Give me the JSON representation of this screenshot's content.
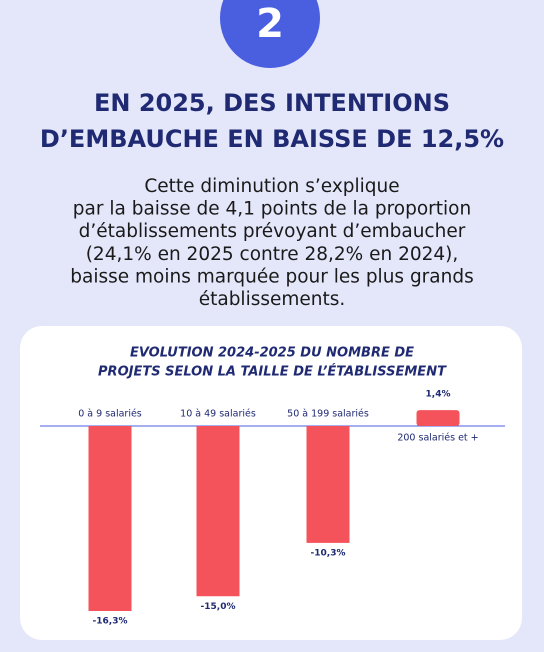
{
  "badge": "2",
  "heading": [
    "EN 2025, DES INTENTIONS",
    "D’EMBAUCHE EN BAISSE DE 12,5%"
  ],
  "text": [
    "Cette diminution s’explique",
    "par la baisse de 4,1 points de la proportion",
    "d’établissements prévoyant d’embaucher",
    "(24,1% en 2025 contre 28,2% en 2024),",
    "baisse moins marquée pour les plus grands",
    "établissements."
  ],
  "chart_data": {
    "type": "bar",
    "title": [
      "EVOLUTION 2024-2025 DU NOMBRE DE",
      "PROJETS SELON LA TAILLE DE L’ÉTABLISSEMENT"
    ],
    "categories": [
      "0 à 9 salariés",
      "10 à 49 salariés",
      "50 à 199 salariés",
      "200 salariés et +"
    ],
    "values": [
      -16.3,
      -15.0,
      -10.3,
      1.4
    ],
    "value_labels": [
      "-16,3%",
      "-15,0%",
      "-10,3%",
      "1,4%"
    ],
    "color": "#f5535b"
  }
}
